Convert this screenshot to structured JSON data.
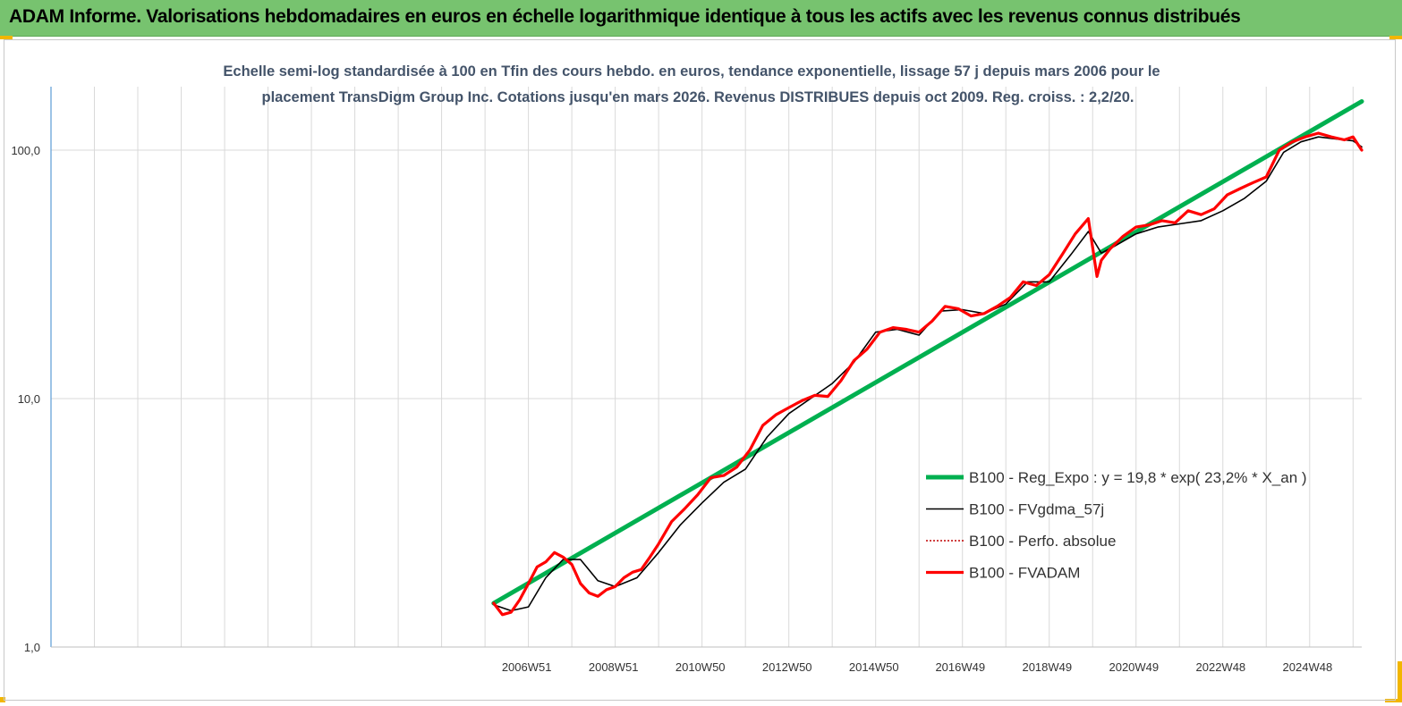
{
  "header": {
    "title": "ADAM Informe. Valorisations hebdomadaires en euros en échelle logarithmique identique à tous les actifs avec les revenus connus distribués"
  },
  "colors": {
    "header_bg": "#77c36f",
    "corner_accent": "#f2b600",
    "reg_line": "#00b050",
    "fvgdma_line": "#000000",
    "perfo_line": "#c00000",
    "fvadam_line": "#ff0000",
    "gridline": "#d9d9d9",
    "y_axis": "#5b9bd5"
  },
  "chart_data": {
    "type": "line",
    "subtitle_lines": [
      "Echelle semi-log standardisée à 100 en Tfin des cours hebdo. en euros, tendance exponentielle, lissage 57 j depuis mars 2006 pour le",
      "placement TransDigm Group Inc. Cotations jusqu'en mars 2026. Revenus DISTRIBUES depuis oct 2009. Reg. croiss. : 2,2/20."
    ],
    "y_scale": "log",
    "ylim": [
      1,
      180
    ],
    "yticks": [
      {
        "value": 1,
        "label": "1,0"
      },
      {
        "value": 10,
        "label": "10,0"
      },
      {
        "value": 100,
        "label": "100,0"
      }
    ],
    "x_unit": "year",
    "xlim": [
      1996.0,
      2026.2
    ],
    "xticks": [
      {
        "value": 2006.96,
        "label": "2006W51"
      },
      {
        "value": 2008.96,
        "label": "2008W51"
      },
      {
        "value": 2010.96,
        "label": "2010W50"
      },
      {
        "value": 2012.96,
        "label": "2012W50"
      },
      {
        "value": 2014.96,
        "label": "2014W50"
      },
      {
        "value": 2016.95,
        "label": "2016W49"
      },
      {
        "value": 2018.95,
        "label": "2018W49"
      },
      {
        "value": 2020.95,
        "label": "2020W49"
      },
      {
        "value": 2022.95,
        "label": "2022W48"
      },
      {
        "value": 2024.95,
        "label": "2024W48"
      }
    ],
    "vertical_grid_step": 1,
    "grid": true,
    "legend_position": "right",
    "series": [
      {
        "name": "B100 - Reg_Expo : y = 19,8 * exp( 23,2% *  X_an )",
        "key": "reg",
        "style": "thick",
        "x": [
          2006.2,
          2026.2
        ],
        "y": [
          1.5,
          157
        ]
      },
      {
        "name": "B100 - FVgdma_57j",
        "key": "fvgdma",
        "style": "thin",
        "x": [
          2006.2,
          2006.6,
          2007.0,
          2007.4,
          2007.8,
          2008.2,
          2008.6,
          2009.0,
          2009.5,
          2010.0,
          2010.5,
          2011.0,
          2011.5,
          2012.0,
          2012.5,
          2013.0,
          2013.5,
          2014.0,
          2014.5,
          2015.0,
          2015.5,
          2016.0,
          2016.5,
          2017.0,
          2017.5,
          2018.0,
          2018.5,
          2019.0,
          2019.5,
          2019.9,
          2020.2,
          2020.5,
          2021.0,
          2021.5,
          2022.0,
          2022.5,
          2023.0,
          2023.5,
          2024.0,
          2024.4,
          2024.8,
          2025.2,
          2025.6,
          2026.0,
          2026.2
        ],
        "y": [
          1.48,
          1.4,
          1.45,
          1.9,
          2.25,
          2.25,
          1.85,
          1.75,
          1.9,
          2.4,
          3.1,
          3.8,
          4.6,
          5.2,
          7.0,
          8.7,
          10.0,
          11.5,
          14.0,
          18.5,
          19.0,
          18.0,
          22.5,
          22.8,
          22.0,
          24.0,
          29.5,
          29.5,
          38.0,
          47.0,
          38.5,
          41.0,
          46.0,
          49.0,
          50.5,
          52.0,
          57.0,
          64.0,
          75.0,
          98.0,
          108.0,
          113.0,
          111.0,
          109.0,
          103.0
        ]
      },
      {
        "name": "B100 - Perfo. absolue",
        "key": "perfo",
        "style": "dotted",
        "x": [],
        "y": []
      },
      {
        "name": "B100 - FVADAM",
        "key": "fvadam",
        "style": "thick",
        "x": [
          2006.2,
          2006.4,
          2006.6,
          2006.8,
          2007.0,
          2007.2,
          2007.4,
          2007.6,
          2007.8,
          2008.0,
          2008.2,
          2008.4,
          2008.6,
          2008.8,
          2009.0,
          2009.2,
          2009.4,
          2009.6,
          2009.8,
          2010.0,
          2010.3,
          2010.6,
          2010.9,
          2011.2,
          2011.5,
          2011.8,
          2012.1,
          2012.4,
          2012.7,
          2013.0,
          2013.3,
          2013.6,
          2013.9,
          2014.2,
          2014.5,
          2014.8,
          2015.1,
          2015.4,
          2015.7,
          2016.0,
          2016.3,
          2016.6,
          2016.9,
          2017.2,
          2017.5,
          2017.8,
          2018.1,
          2018.4,
          2018.7,
          2019.0,
          2019.3,
          2019.6,
          2019.9,
          2020.1,
          2020.2,
          2020.4,
          2020.7,
          2021.0,
          2021.3,
          2021.6,
          2021.9,
          2022.2,
          2022.5,
          2022.8,
          2023.1,
          2023.4,
          2023.7,
          2024.0,
          2024.3,
          2024.6,
          2024.9,
          2025.2,
          2025.5,
          2025.8,
          2026.0,
          2026.2
        ],
        "y": [
          1.5,
          1.35,
          1.38,
          1.55,
          1.8,
          2.1,
          2.2,
          2.4,
          2.3,
          2.15,
          1.8,
          1.65,
          1.6,
          1.7,
          1.75,
          1.9,
          2.0,
          2.05,
          2.3,
          2.6,
          3.2,
          3.6,
          4.1,
          4.8,
          4.9,
          5.3,
          6.2,
          7.8,
          8.6,
          9.2,
          9.8,
          10.3,
          10.2,
          11.8,
          14.2,
          15.8,
          18.5,
          19.3,
          19.0,
          18.5,
          20.5,
          23.5,
          23.0,
          21.5,
          22.0,
          23.5,
          25.5,
          29.5,
          28.5,
          31.5,
          38.0,
          46.0,
          53.0,
          31.0,
          36.0,
          40.0,
          45.0,
          49.0,
          50.0,
          52.0,
          51.0,
          57.0,
          55.0,
          58.0,
          66.0,
          70.0,
          74.0,
          78.0,
          100.0,
          108.0,
          113.0,
          117.0,
          113.0,
          110.0,
          113.0,
          100.0
        ]
      }
    ]
  }
}
